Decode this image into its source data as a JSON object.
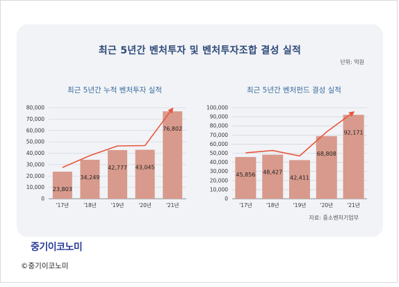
{
  "title": "최근 5년간 벤처투자 및 벤처투자조합 결성 실적",
  "unit": "단위: 억원",
  "source": "자료: 중소벤처기업부",
  "logo_text": "중기이코노미",
  "copyright": "©중기이코노미",
  "colors": {
    "bar": "#d89a8c",
    "line": "#e8553a",
    "title": "#2f4a78",
    "subtitle": "#3b6c9e"
  },
  "chart_data": [
    {
      "type": "bar",
      "title": "최근 5년간 누적 벤처투자 실적",
      "categories": [
        "'17년",
        "'18년",
        "'19년",
        "'20년",
        "'21년"
      ],
      "values": [
        23803,
        34249,
        42777,
        43045,
        76802
      ],
      "value_labels": [
        "23,803",
        "34,249",
        "42,777",
        "43,045",
        "76,802"
      ],
      "ylim": [
        0,
        80000
      ],
      "yticks": [
        0,
        10000,
        20000,
        30000,
        40000,
        50000,
        60000,
        70000,
        80000
      ],
      "ytick_labels": [
        "0",
        "10,000",
        "20,000",
        "30,000",
        "40,000",
        "50,000",
        "60,000",
        "70,000",
        "80,000"
      ],
      "grid": true,
      "trend_line": true
    },
    {
      "type": "bar",
      "title": "최근 5년간 벤처펀드 결성 실적",
      "categories": [
        "'17년",
        "'18년",
        "'19년",
        "'20년",
        "'21년"
      ],
      "values": [
        45856,
        48427,
        42411,
        68808,
        92171
      ],
      "value_labels": [
        "45,856",
        "48,427",
        "42,411",
        "68,808",
        "92,171"
      ],
      "ylim": [
        0,
        100000
      ],
      "yticks": [
        0,
        10000,
        20000,
        30000,
        40000,
        50000,
        60000,
        70000,
        80000,
        90000,
        100000
      ],
      "ytick_labels": [
        "0",
        "10,000",
        "20,000",
        "30,000",
        "40,000",
        "50,000",
        "60,000",
        "70,000",
        "80,000",
        "90,000",
        "100,000"
      ],
      "grid": true,
      "trend_line": true
    }
  ]
}
